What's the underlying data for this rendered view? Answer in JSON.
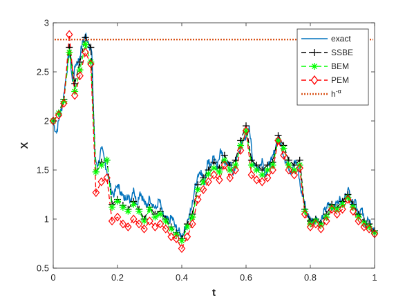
{
  "chart_data": {
    "type": "line",
    "title": "",
    "xlabel": "t",
    "ylabel": "X",
    "xlim": [
      0,
      1
    ],
    "ylim": [
      0.5,
      3
    ],
    "xticks": [
      0,
      0.2,
      0.4,
      0.6,
      0.8,
      1
    ],
    "yticks": [
      0.5,
      1,
      1.5,
      2,
      2.5,
      3
    ],
    "xtick_labels": [
      "0",
      "0.2",
      "0.4",
      "0.6",
      "0.8",
      "1"
    ],
    "ytick_labels": [
      "0.5",
      "1",
      "1.5",
      "2",
      "2.5",
      "3"
    ],
    "grid": false,
    "legend_position": "top-right",
    "threshold": {
      "name": "h^{-α}",
      "value": 2.83,
      "color": "#d95319"
    },
    "exact": {
      "name": "exact",
      "color": "#0072bd",
      "t": [
        0,
        0.01,
        0.02,
        0.03,
        0.04,
        0.05,
        0.06,
        0.07,
        0.08,
        0.09,
        0.1,
        0.11,
        0.12,
        0.13,
        0.14,
        0.15,
        0.16,
        0.17,
        0.18,
        0.19,
        0.2,
        0.21,
        0.22,
        0.23,
        0.24,
        0.25,
        0.26,
        0.27,
        0.28,
        0.29,
        0.3,
        0.31,
        0.32,
        0.33,
        0.34,
        0.35,
        0.36,
        0.37,
        0.38,
        0.39,
        0.4,
        0.41,
        0.42,
        0.43,
        0.44,
        0.45,
        0.46,
        0.47,
        0.48,
        0.49,
        0.5,
        0.51,
        0.52,
        0.53,
        0.54,
        0.55,
        0.56,
        0.57,
        0.58,
        0.59,
        0.6,
        0.61,
        0.62,
        0.63,
        0.64,
        0.65,
        0.66,
        0.67,
        0.68,
        0.69,
        0.7,
        0.71,
        0.72,
        0.73,
        0.74,
        0.75,
        0.76,
        0.77,
        0.78,
        0.79,
        0.8,
        0.81,
        0.82,
        0.83,
        0.84,
        0.85,
        0.86,
        0.87,
        0.88,
        0.89,
        0.9,
        0.91,
        0.92,
        0.93,
        0.94,
        0.95,
        0.96,
        0.97,
        0.98,
        0.99,
        1
      ],
      "values": [
        1.98,
        1.88,
        2.05,
        2.18,
        2.45,
        2.72,
        2.4,
        2.58,
        2.62,
        2.78,
        2.88,
        2.8,
        2.7,
        1.6,
        1.55,
        1.72,
        1.6,
        1.45,
        1.3,
        1.25,
        1.35,
        1.28,
        1.2,
        1.25,
        1.18,
        1.32,
        1.15,
        1.28,
        1.2,
        1.12,
        1.22,
        1.15,
        1.1,
        1.2,
        1.05,
        1.0,
        0.98,
        1.02,
        0.92,
        0.88,
        0.82,
        0.9,
        1.0,
        1.1,
        1.3,
        1.45,
        1.5,
        1.35,
        1.6,
        1.55,
        1.65,
        1.5,
        1.72,
        1.6,
        1.55,
        1.58,
        1.45,
        1.6,
        1.7,
        1.78,
        1.85,
        1.95,
        1.6,
        1.55,
        1.5,
        1.62,
        1.45,
        1.55,
        1.6,
        1.7,
        1.85,
        1.75,
        1.62,
        1.55,
        1.48,
        1.6,
        1.55,
        1.3,
        1.2,
        1.05,
        1.0,
        0.98,
        1.02,
        0.95,
        1.05,
        1.12,
        1.15,
        1.1,
        1.18,
        1.2,
        1.15,
        1.25,
        1.3,
        1.15,
        1.2,
        1.05,
        1.1,
        0.95,
        1.0,
        0.9,
        0.88
      ]
    },
    "series": [
      {
        "name": "SSBE",
        "color": "#000000",
        "marker": "plus",
        "t": [
          0,
          0.017,
          0.033,
          0.05,
          0.067,
          0.083,
          0.1,
          0.117,
          0.133,
          0.15,
          0.167,
          0.183,
          0.2,
          0.217,
          0.233,
          0.25,
          0.267,
          0.283,
          0.3,
          0.317,
          0.333,
          0.35,
          0.367,
          0.383,
          0.4,
          0.417,
          0.433,
          0.45,
          0.467,
          0.483,
          0.5,
          0.517,
          0.533,
          0.55,
          0.567,
          0.583,
          0.6,
          0.617,
          0.633,
          0.65,
          0.667,
          0.683,
          0.7,
          0.717,
          0.733,
          0.75,
          0.767,
          0.783,
          0.8,
          0.817,
          0.833,
          0.85,
          0.867,
          0.883,
          0.9,
          0.917,
          0.933,
          0.95,
          0.967,
          0.983,
          1
        ],
        "values": [
          2.0,
          2.08,
          2.22,
          2.75,
          2.38,
          2.6,
          2.85,
          2.75,
          1.48,
          1.58,
          1.6,
          1.15,
          1.2,
          1.14,
          1.1,
          1.18,
          1.1,
          1.0,
          1.12,
          1.05,
          1.08,
          1.0,
          0.92,
          0.86,
          0.8,
          0.95,
          1.05,
          1.35,
          1.42,
          1.5,
          1.58,
          1.52,
          1.65,
          1.55,
          1.6,
          1.8,
          1.95,
          1.6,
          1.55,
          1.5,
          1.55,
          1.58,
          1.85,
          1.75,
          1.6,
          1.55,
          1.6,
          1.1,
          0.98,
          1.0,
          0.96,
          1.05,
          1.15,
          1.12,
          1.18,
          1.25,
          1.15,
          1.05,
          0.98,
          0.95,
          0.88
        ]
      },
      {
        "name": "BEM",
        "color": "#00ff00",
        "marker": "asterisk",
        "t": [
          0,
          0.017,
          0.033,
          0.05,
          0.067,
          0.083,
          0.1,
          0.117,
          0.133,
          0.15,
          0.167,
          0.183,
          0.2,
          0.217,
          0.233,
          0.25,
          0.267,
          0.283,
          0.3,
          0.317,
          0.333,
          0.35,
          0.367,
          0.383,
          0.4,
          0.417,
          0.433,
          0.45,
          0.467,
          0.483,
          0.5,
          0.517,
          0.533,
          0.55,
          0.567,
          0.583,
          0.6,
          0.617,
          0.633,
          0.65,
          0.667,
          0.683,
          0.7,
          0.717,
          0.733,
          0.75,
          0.767,
          0.783,
          0.8,
          0.817,
          0.833,
          0.85,
          0.867,
          0.883,
          0.9,
          0.917,
          0.933,
          0.95,
          0.967,
          0.983,
          1
        ],
        "values": [
          2.0,
          2.08,
          2.2,
          2.7,
          2.3,
          2.52,
          2.78,
          2.6,
          1.48,
          1.55,
          1.6,
          1.12,
          1.18,
          1.12,
          1.08,
          1.15,
          1.08,
          0.98,
          1.1,
          1.02,
          1.05,
          0.98,
          0.9,
          0.84,
          0.78,
          0.92,
          1.02,
          1.3,
          1.38,
          1.46,
          1.52,
          1.48,
          1.6,
          1.5,
          1.55,
          1.75,
          1.9,
          1.55,
          1.5,
          1.45,
          1.5,
          1.55,
          1.8,
          1.72,
          1.55,
          1.5,
          1.55,
          1.08,
          0.95,
          0.98,
          0.94,
          1.02,
          1.12,
          1.1,
          1.15,
          1.22,
          1.12,
          1.02,
          0.96,
          0.92,
          0.86
        ]
      },
      {
        "name": "PEM",
        "color": "#ff0000",
        "marker": "diamond",
        "t": [
          0,
          0.017,
          0.033,
          0.05,
          0.067,
          0.083,
          0.1,
          0.117,
          0.133,
          0.15,
          0.167,
          0.183,
          0.2,
          0.217,
          0.233,
          0.25,
          0.267,
          0.283,
          0.3,
          0.317,
          0.333,
          0.35,
          0.367,
          0.383,
          0.4,
          0.417,
          0.433,
          0.45,
          0.467,
          0.483,
          0.5,
          0.517,
          0.533,
          0.55,
          0.567,
          0.583,
          0.6,
          0.617,
          0.633,
          0.65,
          0.667,
          0.683,
          0.7,
          0.717,
          0.733,
          0.75,
          0.767,
          0.783,
          0.8,
          0.817,
          0.833,
          0.85,
          0.867,
          0.883,
          0.9,
          0.917,
          0.933,
          0.95,
          0.967,
          0.983,
          1
        ],
        "values": [
          2.0,
          2.06,
          2.18,
          2.88,
          2.26,
          2.46,
          2.7,
          2.58,
          1.27,
          1.38,
          1.42,
          0.98,
          1.02,
          0.95,
          0.92,
          1.0,
          0.95,
          0.9,
          0.98,
          0.92,
          0.95,
          0.9,
          0.82,
          0.8,
          0.7,
          0.82,
          0.95,
          1.2,
          1.3,
          1.38,
          1.45,
          1.4,
          1.55,
          1.42,
          1.5,
          1.7,
          1.9,
          1.45,
          1.4,
          1.38,
          1.42,
          1.5,
          1.8,
          1.65,
          1.5,
          1.45,
          1.52,
          1.05,
          0.92,
          0.95,
          0.9,
          0.98,
          1.1,
          1.05,
          1.1,
          1.2,
          1.08,
          0.98,
          0.92,
          0.9,
          0.85
        ]
      }
    ],
    "legend": [
      {
        "label": "exact",
        "style": "solid",
        "color": "#0072bd",
        "marker": "none"
      },
      {
        "label": "SSBE",
        "style": "dashed",
        "color": "#000000",
        "marker": "plus"
      },
      {
        "label": "BEM",
        "style": "dashed",
        "color": "#00ff00",
        "marker": "asterisk"
      },
      {
        "label": "PEM",
        "style": "dashed",
        "color": "#ff0000",
        "marker": "diamond"
      },
      {
        "label": "h^{-α}",
        "style": "dotted",
        "color": "#d95319",
        "marker": "none"
      }
    ],
    "legend_text": {
      "exact": "exact",
      "ssbe": "SSBE",
      "bem": "BEM",
      "pem": "PEM",
      "h_base": "h",
      "h_exp": "-α"
    }
  }
}
